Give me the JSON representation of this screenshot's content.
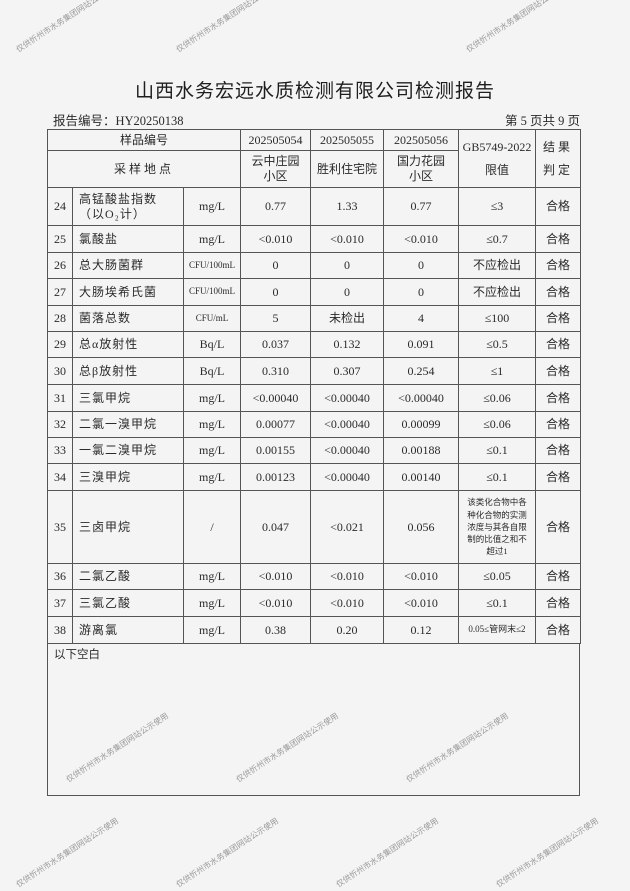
{
  "title": "山西水务宏远水质检测有限公司检测报告",
  "report_no": "报告编号：HY20250138",
  "page_no": "第 5 页共 9 页",
  "watermark": "仅供忻州市水务集团网站公示使用",
  "header": {
    "sample_no_label": "样品编号",
    "location_label": "采样地点",
    "samples": [
      {
        "no": "202505054",
        "location": "云中庄园小区"
      },
      {
        "no": "202505055",
        "location": "胜利住宅院"
      },
      {
        "no": "202505056",
        "location": "国力花园小区"
      }
    ],
    "limit_label": "GB5749-2022 限值",
    "result_label": "结果判定"
  },
  "rows": [
    {
      "no": "24",
      "name": "高锰酸盐指数（以O₂计）",
      "unit": "mg/L",
      "v": [
        "0.77",
        "1.33",
        "0.77"
      ],
      "limit": "≤3",
      "result": "合格"
    },
    {
      "no": "25",
      "name": "氯酸盐",
      "unit": "mg/L",
      "v": [
        "<0.010",
        "<0.010",
        "<0.010"
      ],
      "limit": "≤0.7",
      "result": "合格"
    },
    {
      "no": "26",
      "name": "总大肠菌群",
      "unit": "CFU/100mL",
      "v": [
        "0",
        "0",
        "0"
      ],
      "limit": "不应检出",
      "result": "合格"
    },
    {
      "no": "27",
      "name": "大肠埃希氏菌",
      "unit": "CFU/100mL",
      "v": [
        "0",
        "0",
        "0"
      ],
      "limit": "不应检出",
      "result": "合格"
    },
    {
      "no": "28",
      "name": "菌落总数",
      "unit": "CFU/mL",
      "v": [
        "5",
        "未检出",
        "4"
      ],
      "limit": "≤100",
      "result": "合格"
    },
    {
      "no": "29",
      "name": "总α放射性",
      "unit": "Bq/L",
      "v": [
        "0.037",
        "0.132",
        "0.091"
      ],
      "limit": "≤0.5",
      "result": "合格"
    },
    {
      "no": "30",
      "name": "总β放射性",
      "unit": "Bq/L",
      "v": [
        "0.310",
        "0.307",
        "0.254"
      ],
      "limit": "≤1",
      "result": "合格"
    },
    {
      "no": "31",
      "name": "三氯甲烷",
      "unit": "mg/L",
      "v": [
        "<0.00040",
        "<0.00040",
        "<0.00040"
      ],
      "limit": "≤0.06",
      "result": "合格"
    },
    {
      "no": "32",
      "name": "二氯一溴甲烷",
      "unit": "mg/L",
      "v": [
        "0.00077",
        "<0.00040",
        "0.00099"
      ],
      "limit": "≤0.06",
      "result": "合格"
    },
    {
      "no": "33",
      "name": "一氯二溴甲烷",
      "unit": "mg/L",
      "v": [
        "0.00155",
        "<0.00040",
        "0.00188"
      ],
      "limit": "≤0.1",
      "result": "合格"
    },
    {
      "no": "34",
      "name": "三溴甲烷",
      "unit": "mg/L",
      "v": [
        "0.00123",
        "<0.00040",
        "0.00140"
      ],
      "limit": "≤0.1",
      "result": "合格"
    },
    {
      "no": "35",
      "name": "三卤甲烷",
      "unit": "/",
      "v": [
        "0.047",
        "<0.021",
        "0.056"
      ],
      "limit": "该类化合物中各种化合物的实测浓度与其各自限制的比值之和不超过1",
      "result": "合格"
    },
    {
      "no": "36",
      "name": "二氯乙酸",
      "unit": "mg/L",
      "v": [
        "<0.010",
        "<0.010",
        "<0.010"
      ],
      "limit": "≤0.05",
      "result": "合格"
    },
    {
      "no": "37",
      "name": "三氯乙酸",
      "unit": "mg/L",
      "v": [
        "<0.010",
        "<0.010",
        "<0.010"
      ],
      "limit": "≤0.1",
      "result": "合格"
    },
    {
      "no": "38",
      "name": "游离氯",
      "unit": "mg/L",
      "v": [
        "0.38",
        "0.20",
        "0.12"
      ],
      "limit": "0.05≤管网末≤2",
      "result": "合格"
    }
  ],
  "footer_note": "以下空白"
}
